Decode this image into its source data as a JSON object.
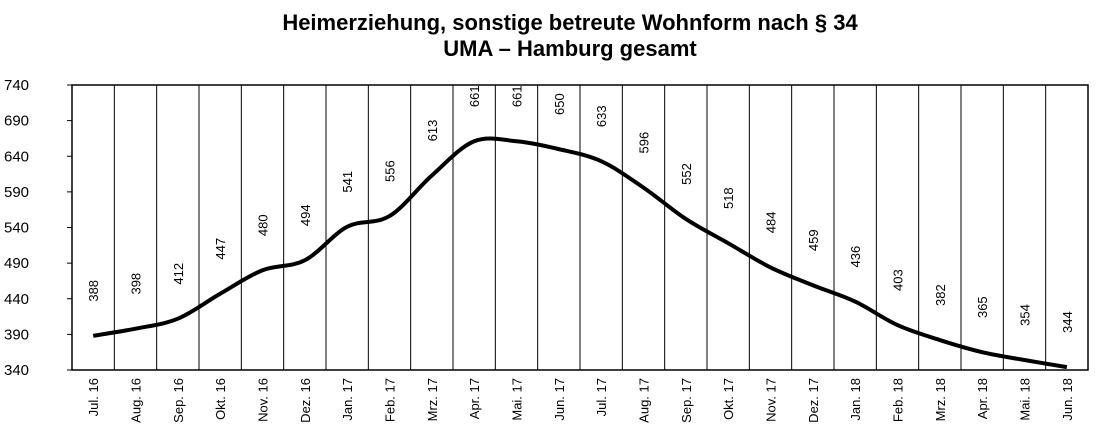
{
  "chart_data": {
    "type": "line",
    "title": "Heimerziehung, sonstige betreute Wohnform nach § 34",
    "subtitle": "UMA – Hamburg gesamt",
    "categories": [
      "Jul. 16",
      "Aug. 16",
      "Sep. 16",
      "Okt. 16",
      "Nov. 16",
      "Dez. 16",
      "Jan. 17",
      "Feb. 17",
      "Mrz. 17",
      "Apr. 17",
      "Mai. 17",
      "Jun. 17",
      "Jul. 17",
      "Aug. 17",
      "Sep. 17",
      "Okt. 17",
      "Nov. 17",
      "Dez. 17",
      "Jan. 18",
      "Feb. 18",
      "Mrz. 18",
      "Apr. 18",
      "Mai. 18",
      "Jun. 18"
    ],
    "values": [
      388,
      398,
      412,
      447,
      480,
      494,
      541,
      556,
      613,
      661,
      661,
      650,
      633,
      596,
      552,
      518,
      484,
      459,
      436,
      403,
      382,
      365,
      354,
      344
    ],
    "color": "#000000",
    "ylim": [
      340,
      740
    ],
    "yticks": [
      340,
      390,
      440,
      490,
      540,
      590,
      640,
      690,
      740
    ]
  }
}
